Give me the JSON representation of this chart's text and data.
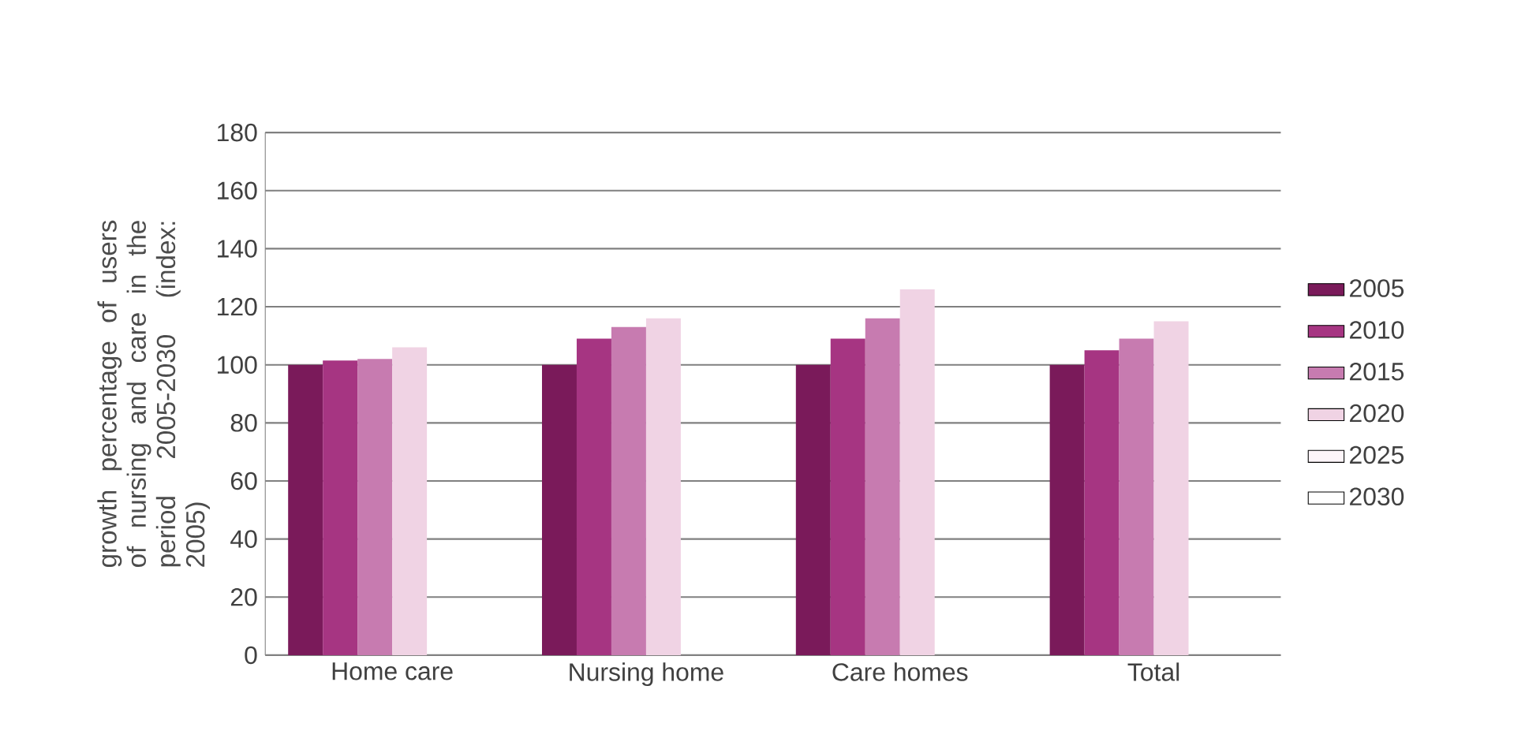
{
  "chart_data": {
    "type": "bar",
    "ylabel": "growth percentage of users of nursing and care in the period 2005-2030 (index: 2005)",
    "categories": [
      "Home care",
      "Nursing home",
      "Care homes",
      "Total"
    ],
    "series": [
      {
        "name": "2005",
        "color": "#7a1a5a",
        "values": [
          100,
          100,
          100,
          100
        ]
      },
      {
        "name": "2010",
        "color": "#a63582",
        "values": [
          101.5,
          109,
          109,
          105
        ]
      },
      {
        "name": "2015",
        "color": "#c77bb0",
        "values": [
          102,
          113,
          116,
          109
        ]
      },
      {
        "name": "2020",
        "color": "#f0d3e4",
        "values": [
          106,
          116,
          126,
          115
        ]
      },
      {
        "name": "2025",
        "color": "#fdf5f9",
        "values": [
          null,
          null,
          null,
          null
        ]
      },
      {
        "name": "2030",
        "color": "#ffffff",
        "values": [
          null,
          null,
          null,
          null
        ]
      }
    ],
    "ylim": [
      0,
      180
    ],
    "yticks": [
      0,
      20,
      40,
      60,
      80,
      100,
      120,
      140,
      160,
      180
    ],
    "grid": "y",
    "legend": "right"
  }
}
